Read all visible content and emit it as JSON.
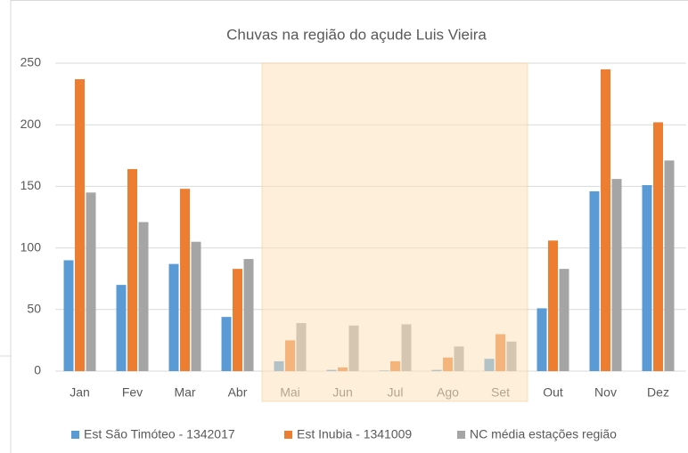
{
  "chart_data": {
    "type": "bar",
    "title": "Chuvas na região do açude Luis Vieira",
    "categories": [
      "Jan",
      "Fev",
      "Mar",
      "Abr",
      "Mai",
      "Jun",
      "Jul",
      "Ago",
      "Set",
      "Out",
      "Nov",
      "Dez"
    ],
    "series": [
      {
        "name": "Est São Timóteo - 1342017",
        "color": "#5b9bd5",
        "values": [
          90,
          70,
          87,
          44,
          8,
          1,
          0.5,
          1,
          10,
          51,
          146,
          151
        ]
      },
      {
        "name": "Est Inubia - 1341009",
        "color": "#ed7d31",
        "values": [
          237,
          164,
          148,
          83,
          25,
          3,
          8,
          11,
          30,
          106,
          245,
          202
        ]
      },
      {
        "name": "NC média estações região",
        "color": "#a5a5a5",
        "values": [
          145,
          121,
          105,
          91,
          39,
          37,
          38,
          20,
          24,
          83,
          156,
          171
        ]
      }
    ],
    "ylim": [
      0,
      250
    ],
    "yticks": [
      0,
      50,
      100,
      150,
      200,
      250
    ],
    "grid": true,
    "legend": "bottom"
  }
}
